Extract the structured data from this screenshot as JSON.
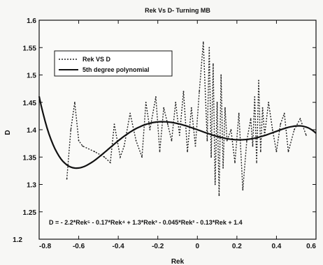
{
  "chart_data": {
    "type": "line",
    "title": "Rek Vs D- Turning MB",
    "xlabel": "Rek",
    "ylabel": "D",
    "xlim": [
      -0.8,
      0.6
    ],
    "ylim": [
      1.2,
      1.6
    ],
    "x_ticks": [
      -0.8,
      -0.6,
      -0.4,
      -0.2,
      0,
      0.2,
      0.4,
      0.6
    ],
    "x_tick_labels": [
      "-0.8",
      "-0.6",
      "-0.4",
      "-0.2",
      "0",
      "0.2",
      "0.4",
      "0.6"
    ],
    "y_ticks": [
      1.25,
      1.3,
      1.35,
      1.4,
      1.45,
      1.5,
      1.55,
      1.6
    ],
    "y_tick_labels": [
      "1.25",
      "1.3",
      "1.35",
      "1.4",
      "1.45",
      "1.5",
      "1.55",
      "1.6"
    ],
    "y_bottom_label": "1.2",
    "legend": {
      "position": "upper-left",
      "entries": [
        "Rek VS D",
        "5th degree polynomial"
      ]
    },
    "annotation": "D = - 2.2*Rek⁵ - 0.17*Rek⁴ + 1.3*Rek³ - 0.045*Rek² - 0.13*Rek + 1.4",
    "grid": false,
    "series": [
      {
        "name": "Rek VS D",
        "style": "dotted",
        "color": "#222222",
        "x": [
          -0.66,
          -0.64,
          -0.62,
          -0.6,
          -0.58,
          -0.52,
          -0.47,
          -0.44,
          -0.42,
          -0.39,
          -0.37,
          -0.34,
          -0.31,
          -0.28,
          -0.26,
          -0.24,
          -0.21,
          -0.19,
          -0.17,
          -0.15,
          -0.13,
          -0.11,
          -0.09,
          -0.07,
          -0.05,
          -0.03,
          -0.01,
          0.01,
          0.03,
          0.05,
          0.06,
          0.07,
          0.08,
          0.09,
          0.1,
          0.11,
          0.12,
          0.13,
          0.14,
          0.15,
          0.17,
          0.19,
          0.21,
          0.23,
          0.25,
          0.27,
          0.28,
          0.29,
          0.3,
          0.31,
          0.32,
          0.33,
          0.34,
          0.36,
          0.38,
          0.4,
          0.42,
          0.44,
          0.46,
          0.49,
          0.52,
          0.55
        ],
        "y": [
          1.31,
          1.4,
          1.45,
          1.38,
          1.37,
          1.36,
          1.35,
          1.34,
          1.41,
          1.35,
          1.37,
          1.43,
          1.38,
          1.35,
          1.45,
          1.4,
          1.46,
          1.36,
          1.44,
          1.41,
          1.38,
          1.45,
          1.39,
          1.47,
          1.36,
          1.44,
          1.37,
          1.47,
          1.56,
          1.38,
          1.55,
          1.35,
          1.52,
          1.3,
          1.45,
          1.28,
          1.5,
          1.33,
          1.44,
          1.38,
          1.4,
          1.34,
          1.43,
          1.29,
          1.38,
          1.42,
          1.37,
          1.46,
          1.34,
          1.49,
          1.36,
          1.44,
          1.39,
          1.45,
          1.4,
          1.36,
          1.41,
          1.43,
          1.36,
          1.4,
          1.42,
          1.39
        ]
      },
      {
        "name": "5th degree polynomial",
        "style": "solid",
        "color": "#111111",
        "coefficients": [
          -2.2,
          -0.17,
          1.3,
          -0.045,
          -0.13,
          1.4
        ]
      }
    ]
  }
}
